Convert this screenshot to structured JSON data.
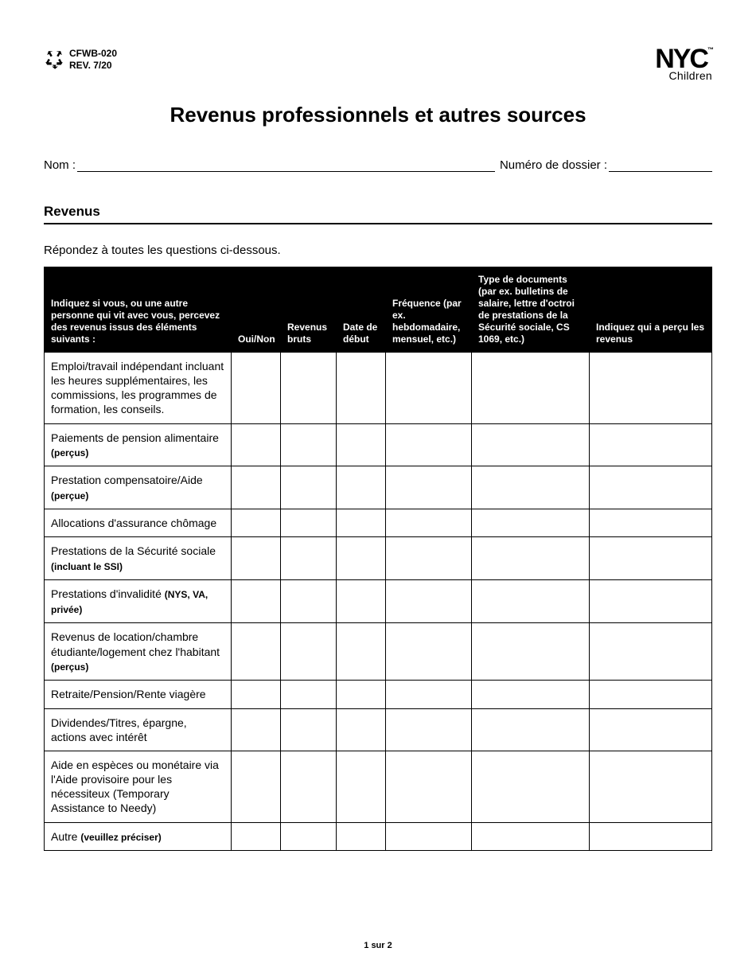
{
  "form": {
    "code": "CFWB-020",
    "revision": "REV. 7/20"
  },
  "logo": {
    "line1": "NYC",
    "tm": "™",
    "line2": "Children"
  },
  "title": "Revenus professionnels et autres sources",
  "fields": {
    "name_label": "Nom :",
    "case_label": "Numéro de dossier :"
  },
  "section": {
    "heading": "Revenus",
    "instructions": "Répondez à toutes les questions ci-dessous."
  },
  "table": {
    "headers": {
      "c1": "Indiquez si vous, ou une autre personne qui vit avec vous, percevez des revenus issus des éléments suivants :",
      "c2": "Oui/Non",
      "c3": "Revenus bruts",
      "c4": "Date de début",
      "c5": "Fréquence (par ex. hebdomadaire, mensuel, etc.)",
      "c6": "Type de documents (par ex. bulletins de salaire, lettre d'octroi de prestations de la Sécurité sociale, CS 1069, etc.)",
      "c7": "Indiquez qui a perçu les revenus"
    },
    "rows": [
      {
        "main": "Emploi/travail indépendant incluant les heures supplémentaires, les commissions, les programmes de formation, les conseils.",
        "paren": ""
      },
      {
        "main": "Paiements de pension alimentaire ",
        "paren": "(perçus)"
      },
      {
        "main": "Prestation compensatoire/Aide ",
        "paren": "(perçue)"
      },
      {
        "main": "Allocations d'assurance chômage",
        "paren": ""
      },
      {
        "main": "Prestations de la Sécurité sociale ",
        "paren": "(incluant le SSI)"
      },
      {
        "main": "Prestations d'invalidité ",
        "paren": "(NYS, VA, privée)"
      },
      {
        "main": "Revenus de location/chambre étudiante/logement chez l'habitant ",
        "paren": "(perçus)"
      },
      {
        "main": "Retraite/Pension/Rente viagère",
        "paren": ""
      },
      {
        "main": "Dividendes/Titres, épargne, actions avec intérêt",
        "paren": ""
      },
      {
        "main": "Aide en espèces ou monétaire via l'Aide provisoire pour les nécessiteux (Temporary Assistance to Needy)",
        "paren": ""
      },
      {
        "main": "Autre ",
        "paren": "(veuillez préciser)"
      }
    ]
  },
  "footer": {
    "page": "1 sur 2"
  },
  "colors": {
    "ink": "#000000",
    "paper": "#ffffff"
  }
}
